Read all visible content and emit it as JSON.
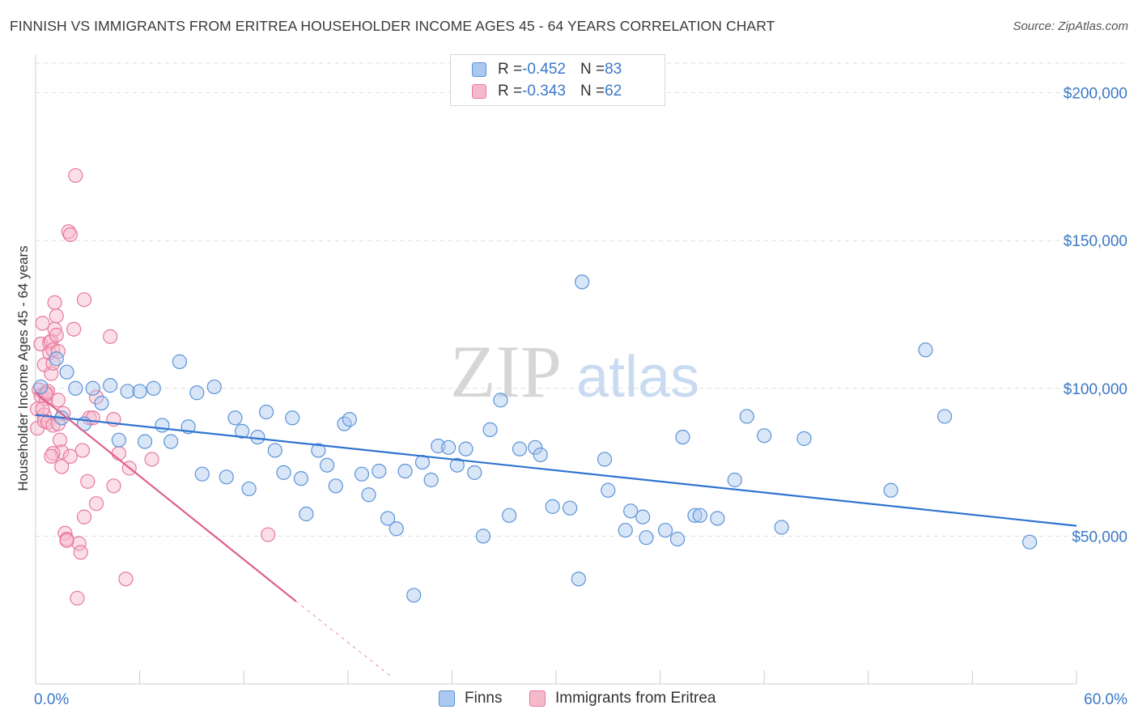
{
  "header": {
    "title": "FINNISH VS IMMIGRANTS FROM ERITREA HOUSEHOLDER INCOME AGES 45 - 64 YEARS CORRELATION CHART",
    "source": "Source: ZipAtlas.com"
  },
  "watermark": {
    "zip": "ZIP",
    "atlas": "atlas"
  },
  "legend": {
    "rows": [
      {
        "r_label": "R = ",
        "r_value": "-0.452",
        "n_label": "N = ",
        "n_value": "83"
      },
      {
        "r_label": "R = ",
        "r_value": "-0.343",
        "n_label": "N = ",
        "n_value": "62"
      }
    ]
  },
  "bottom_legend": {
    "finns": "Finns",
    "eritrea": "Immigrants from Eritrea"
  },
  "colors": {
    "finns_fill": "#aac8f0",
    "finns_stroke": "#5b93d8",
    "finns_line": "#2f74d0",
    "eritrea_fill": "#f6b8cb",
    "eritrea_stroke": "#e8789c",
    "eritrea_line": "#e0608e",
    "axis_text": "#3b78c8",
    "grid": "#dddddd"
  },
  "chart_data": {
    "type": "scatter",
    "title": "FINNISH VS IMMIGRANTS FROM ERITREA HOUSEHOLDER INCOME AGES 45 - 64 YEARS CORRELATION CHART",
    "xlabel": "",
    "ylabel": "Householder Income Ages 45 - 64 years",
    "xlim": [
      0,
      60
    ],
    "ylim": [
      0,
      210000
    ],
    "x_tick_labels": [
      "0.0%",
      "60.0%"
    ],
    "y_ticks": [
      50000,
      100000,
      150000,
      200000
    ],
    "y_tick_labels": [
      "$50,000",
      "$100,000",
      "$150,000",
      "$200,000"
    ],
    "grid": "horizontal dashed",
    "legend_position": "top-center",
    "series": [
      {
        "name": "Finns",
        "r": -0.452,
        "n": 83,
        "trend": {
          "x": [
            0,
            60
          ],
          "y": [
            91000,
            53500
          ]
        },
        "points": [
          [
            0.3,
            100500
          ],
          [
            1.2,
            110000
          ],
          [
            1.8,
            105500
          ],
          [
            2.3,
            100000
          ],
          [
            2.8,
            88000
          ],
          [
            3.3,
            100000
          ],
          [
            3.8,
            95000
          ],
          [
            4.3,
            101000
          ],
          [
            4.8,
            82500
          ],
          [
            5.3,
            99000
          ],
          [
            6.0,
            99000
          ],
          [
            6.3,
            82000
          ],
          [
            6.8,
            100000
          ],
          [
            7.3,
            87500
          ],
          [
            7.8,
            82000
          ],
          [
            8.3,
            109000
          ],
          [
            8.8,
            87000
          ],
          [
            9.3,
            98500
          ],
          [
            9.6,
            71000
          ],
          [
            10.3,
            100500
          ],
          [
            11.0,
            70000
          ],
          [
            11.5,
            90000
          ],
          [
            11.9,
            85500
          ],
          [
            12.3,
            66000
          ],
          [
            12.8,
            83500
          ],
          [
            13.3,
            92000
          ],
          [
            13.8,
            79000
          ],
          [
            14.3,
            71500
          ],
          [
            14.8,
            90000
          ],
          [
            15.3,
            69500
          ],
          [
            15.6,
            57500
          ],
          [
            16.3,
            79000
          ],
          [
            16.8,
            74000
          ],
          [
            17.3,
            67000
          ],
          [
            17.8,
            88000
          ],
          [
            18.1,
            89500
          ],
          [
            18.8,
            71000
          ],
          [
            19.2,
            64000
          ],
          [
            19.8,
            72000
          ],
          [
            20.3,
            56000
          ],
          [
            20.8,
            52500
          ],
          [
            21.3,
            72000
          ],
          [
            21.8,
            30000
          ],
          [
            22.3,
            75000
          ],
          [
            22.8,
            69000
          ],
          [
            23.2,
            80500
          ],
          [
            23.8,
            80000
          ],
          [
            24.3,
            74000
          ],
          [
            24.8,
            79500
          ],
          [
            25.3,
            71500
          ],
          [
            25.8,
            50000
          ],
          [
            26.2,
            86000
          ],
          [
            26.8,
            96000
          ],
          [
            27.3,
            57000
          ],
          [
            27.9,
            79500
          ],
          [
            28.8,
            80000
          ],
          [
            29.1,
            77500
          ],
          [
            29.8,
            60000
          ],
          [
            30.8,
            59500
          ],
          [
            31.3,
            35500
          ],
          [
            31.5,
            136000
          ],
          [
            32.8,
            76000
          ],
          [
            33.0,
            65500
          ],
          [
            34.0,
            52000
          ],
          [
            34.3,
            58500
          ],
          [
            35.0,
            56500
          ],
          [
            35.2,
            49500
          ],
          [
            36.3,
            52000
          ],
          [
            37.0,
            49000
          ],
          [
            37.3,
            83500
          ],
          [
            38.0,
            57000
          ],
          [
            38.3,
            57000
          ],
          [
            39.3,
            56000
          ],
          [
            40.3,
            69000
          ],
          [
            41.0,
            90500
          ],
          [
            42.0,
            84000
          ],
          [
            43.0,
            53000
          ],
          [
            44.3,
            83000
          ],
          [
            49.3,
            65500
          ],
          [
            51.3,
            113000
          ],
          [
            52.4,
            90500
          ],
          [
            57.3,
            48000
          ],
          [
            1.5,
            90000
          ]
        ]
      },
      {
        "name": "Immigrants from Eritrea",
        "r": -0.343,
        "n": 62,
        "trend": {
          "x": [
            0,
            15
          ],
          "y": [
            98500,
            28000
          ]
        },
        "trend_dashed": {
          "x": [
            15,
            20.5
          ],
          "y": [
            28000,
            2500
          ]
        },
        "points": [
          [
            0.1,
            93000
          ],
          [
            0.1,
            86500
          ],
          [
            0.2,
            99500
          ],
          [
            0.3,
            97500
          ],
          [
            0.3,
            115000
          ],
          [
            0.4,
            122000
          ],
          [
            0.5,
            108000
          ],
          [
            0.5,
            91000
          ],
          [
            0.5,
            89000
          ],
          [
            0.6,
            96500
          ],
          [
            0.6,
            98500
          ],
          [
            0.7,
            88500
          ],
          [
            0.7,
            99000
          ],
          [
            0.8,
            115500
          ],
          [
            0.8,
            112000
          ],
          [
            0.9,
            116000
          ],
          [
            0.9,
            105000
          ],
          [
            1.0,
            87500
          ],
          [
            1.0,
            113000
          ],
          [
            1.0,
            108500
          ],
          [
            1.1,
            120000
          ],
          [
            1.1,
            129000
          ],
          [
            1.2,
            124500
          ],
          [
            1.2,
            118000
          ],
          [
            1.3,
            112500
          ],
          [
            1.3,
            96000
          ],
          [
            1.4,
            82500
          ],
          [
            1.5,
            78500
          ],
          [
            1.5,
            73500
          ],
          [
            1.6,
            91500
          ],
          [
            1.7,
            51000
          ],
          [
            1.8,
            49000
          ],
          [
            1.9,
            153000
          ],
          [
            2.0,
            152000
          ],
          [
            2.0,
            77000
          ],
          [
            2.2,
            120000
          ],
          [
            2.3,
            172000
          ],
          [
            2.4,
            29000
          ],
          [
            2.5,
            47500
          ],
          [
            2.6,
            44500
          ],
          [
            2.7,
            79000
          ],
          [
            2.8,
            130000
          ],
          [
            2.8,
            56500
          ],
          [
            3.0,
            68500
          ],
          [
            3.1,
            90000
          ],
          [
            3.3,
            90000
          ],
          [
            3.5,
            61000
          ],
          [
            3.5,
            97000
          ],
          [
            4.3,
            117500
          ],
          [
            4.5,
            89500
          ],
          [
            4.5,
            67000
          ],
          [
            4.8,
            78000
          ],
          [
            5.2,
            35500
          ],
          [
            5.4,
            73000
          ],
          [
            6.7,
            76000
          ],
          [
            13.4,
            50500
          ],
          [
            1.0,
            78000
          ],
          [
            0.9,
            77000
          ],
          [
            0.4,
            93000
          ],
          [
            1.3,
            88000
          ],
          [
            0.6,
            98000
          ],
          [
            1.8,
            48500
          ]
        ]
      }
    ]
  }
}
